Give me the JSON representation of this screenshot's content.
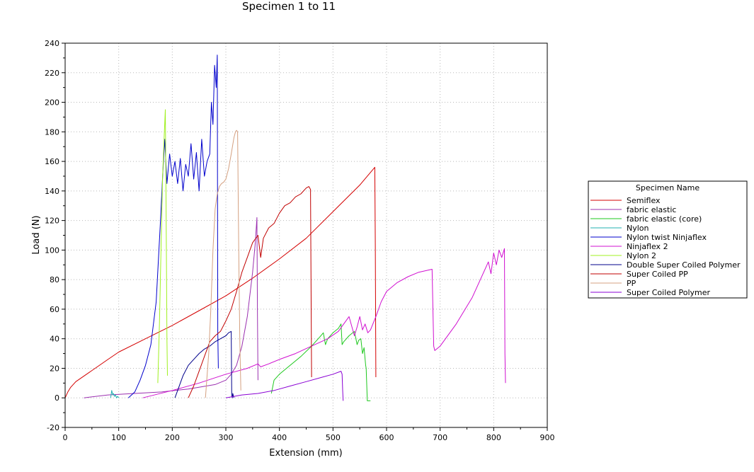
{
  "chart_data": {
    "type": "line",
    "title": "Specimen 1 to 11",
    "xlabel": "Extension (mm)",
    "ylabel": "Load (N)",
    "xlim": [
      0,
      900
    ],
    "ylim": [
      -20,
      240
    ],
    "xticks": [
      0,
      100,
      200,
      300,
      400,
      500,
      600,
      700,
      800,
      900
    ],
    "yticks": [
      -20,
      0,
      20,
      40,
      60,
      80,
      100,
      120,
      140,
      160,
      180,
      200,
      220,
      240
    ],
    "grid": true,
    "legend_title": "Specimen Name",
    "legend_position": "right",
    "series": [
      {
        "name": "Semiflex",
        "color": "#d40000",
        "x": [
          0,
          5,
          10,
          20,
          40,
          60,
          80,
          100,
          150,
          200,
          250,
          300,
          350,
          400,
          450,
          500,
          550,
          578,
          579,
          580
        ],
        "y": [
          0,
          4,
          7,
          11,
          16,
          21,
          26,
          31,
          40,
          49,
          59,
          69,
          81,
          94,
          108,
          126,
          144,
          156,
          104,
          14
        ]
      },
      {
        "name": "fabric elastic",
        "color": "#9b30b0",
        "x": [
          35,
          80,
          130,
          180,
          230,
          280,
          300,
          310,
          320,
          330,
          340,
          350,
          355,
          358,
          359,
          360
        ],
        "y": [
          0,
          2,
          3,
          4,
          6,
          9,
          12,
          16,
          22,
          35,
          55,
          85,
          105,
          122,
          60,
          12
        ]
      },
      {
        "name": "fabric elastic (core)",
        "color": "#1ec81e",
        "x": [
          385,
          390,
          400,
          420,
          440,
          460,
          475,
          482,
          486,
          490,
          500,
          510,
          515,
          517,
          520,
          530,
          540,
          545,
          548,
          552,
          555,
          558,
          561,
          562,
          564,
          567,
          570
        ],
        "y": [
          3,
          12,
          16,
          22,
          28,
          35,
          41,
          44,
          36,
          40,
          44,
          47,
          50,
          36,
          38,
          42,
          45,
          36,
          39,
          40,
          30,
          34,
          22,
          20,
          -2,
          -2,
          -2
        ]
      },
      {
        "name": "Nylon",
        "color": "#20b0b0",
        "x": [
          85,
          87,
          89,
          90,
          92,
          94,
          96,
          98,
          100
        ],
        "y": [
          0,
          5,
          2,
          3,
          1,
          2,
          0,
          1,
          0
        ]
      },
      {
        "name": "Nylon twist Ninjaflex",
        "color": "#0000cc",
        "x": [
          118,
          130,
          140,
          150,
          160,
          170,
          178,
          182,
          186,
          190,
          195,
          200,
          205,
          210,
          215,
          220,
          225,
          230,
          235,
          240,
          245,
          250,
          255,
          260,
          265,
          270,
          273,
          276,
          279,
          282,
          284,
          285,
          286
        ],
        "y": [
          0,
          4,
          12,
          22,
          36,
          65,
          120,
          150,
          175,
          145,
          165,
          150,
          160,
          145,
          162,
          140,
          158,
          150,
          172,
          148,
          166,
          140,
          175,
          150,
          160,
          165,
          200,
          185,
          225,
          210,
          232,
          45,
          20
        ]
      },
      {
        "name": "Ninjaflex 2",
        "color": "#d010d0",
        "x": [
          145,
          200,
          250,
          300,
          340,
          360,
          365,
          380,
          400,
          430,
          460,
          490,
          510,
          520,
          530,
          540,
          545,
          550,
          555,
          560,
          565,
          570,
          580,
          590,
          600,
          620,
          640,
          660,
          685,
          688,
          690,
          700,
          730,
          760,
          790,
          795,
          800,
          805,
          810,
          815,
          820,
          821,
          822
        ],
        "y": [
          0,
          5,
          10,
          16,
          20,
          23,
          21,
          23,
          26,
          30,
          35,
          40,
          45,
          50,
          55,
          42,
          48,
          55,
          46,
          50,
          44,
          46,
          55,
          65,
          72,
          78,
          82,
          85,
          87,
          35,
          32,
          35,
          50,
          68,
          92,
          84,
          98,
          90,
          100,
          95,
          101,
          30,
          10
        ]
      },
      {
        "name": "Nylon 2",
        "color": "#a0f020",
        "x": [
          173,
          176,
          179,
          182,
          185,
          187,
          188,
          189,
          190,
          191
        ],
        "y": [
          10,
          50,
          100,
          150,
          178,
          195,
          150,
          100,
          40,
          15
        ]
      },
      {
        "name": "Double Super Coiled Polymer",
        "color": "#00008b",
        "x": [
          205,
          210,
          215,
          220,
          230,
          240,
          250,
          260,
          270,
          280,
          290,
          300,
          305,
          310,
          311,
          312,
          313,
          315
        ],
        "y": [
          0,
          5,
          10,
          15,
          22,
          26,
          30,
          33,
          35,
          38,
          40,
          42,
          44,
          45,
          2,
          0,
          3,
          0
        ]
      },
      {
        "name": "Super Coiled PP",
        "color": "#c00000",
        "x": [
          230,
          240,
          250,
          260,
          270,
          280,
          290,
          300,
          310,
          320,
          330,
          340,
          350,
          360,
          365,
          370,
          380,
          390,
          400,
          410,
          420,
          430,
          440,
          450,
          455,
          458,
          459,
          460
        ],
        "y": [
          0,
          8,
          18,
          28,
          38,
          42,
          45,
          52,
          60,
          72,
          85,
          95,
          105,
          110,
          95,
          108,
          115,
          118,
          125,
          130,
          132,
          136,
          138,
          142,
          143,
          141,
          80,
          14
        ]
      },
      {
        "name": "PP",
        "color": "#d4a080",
        "x": [
          262,
          268,
          272,
          276,
          280,
          284,
          288,
          292,
          296,
          300,
          305,
          310,
          315,
          318,
          320,
          322,
          324,
          326,
          328
        ],
        "y": [
          0,
          30,
          60,
          100,
          128,
          138,
          143,
          145,
          146,
          148,
          155,
          165,
          176,
          180,
          181,
          180,
          100,
          40,
          5
        ]
      },
      {
        "name": "Super Coiled Polymer",
        "color": "#8a00d4",
        "x": [
          300,
          330,
          360,
          390,
          420,
          450,
          480,
          500,
          515,
          517,
          518,
          519
        ],
        "y": [
          0,
          2,
          3,
          5,
          8,
          11,
          14,
          16,
          18,
          16,
          5,
          -2
        ]
      }
    ]
  }
}
